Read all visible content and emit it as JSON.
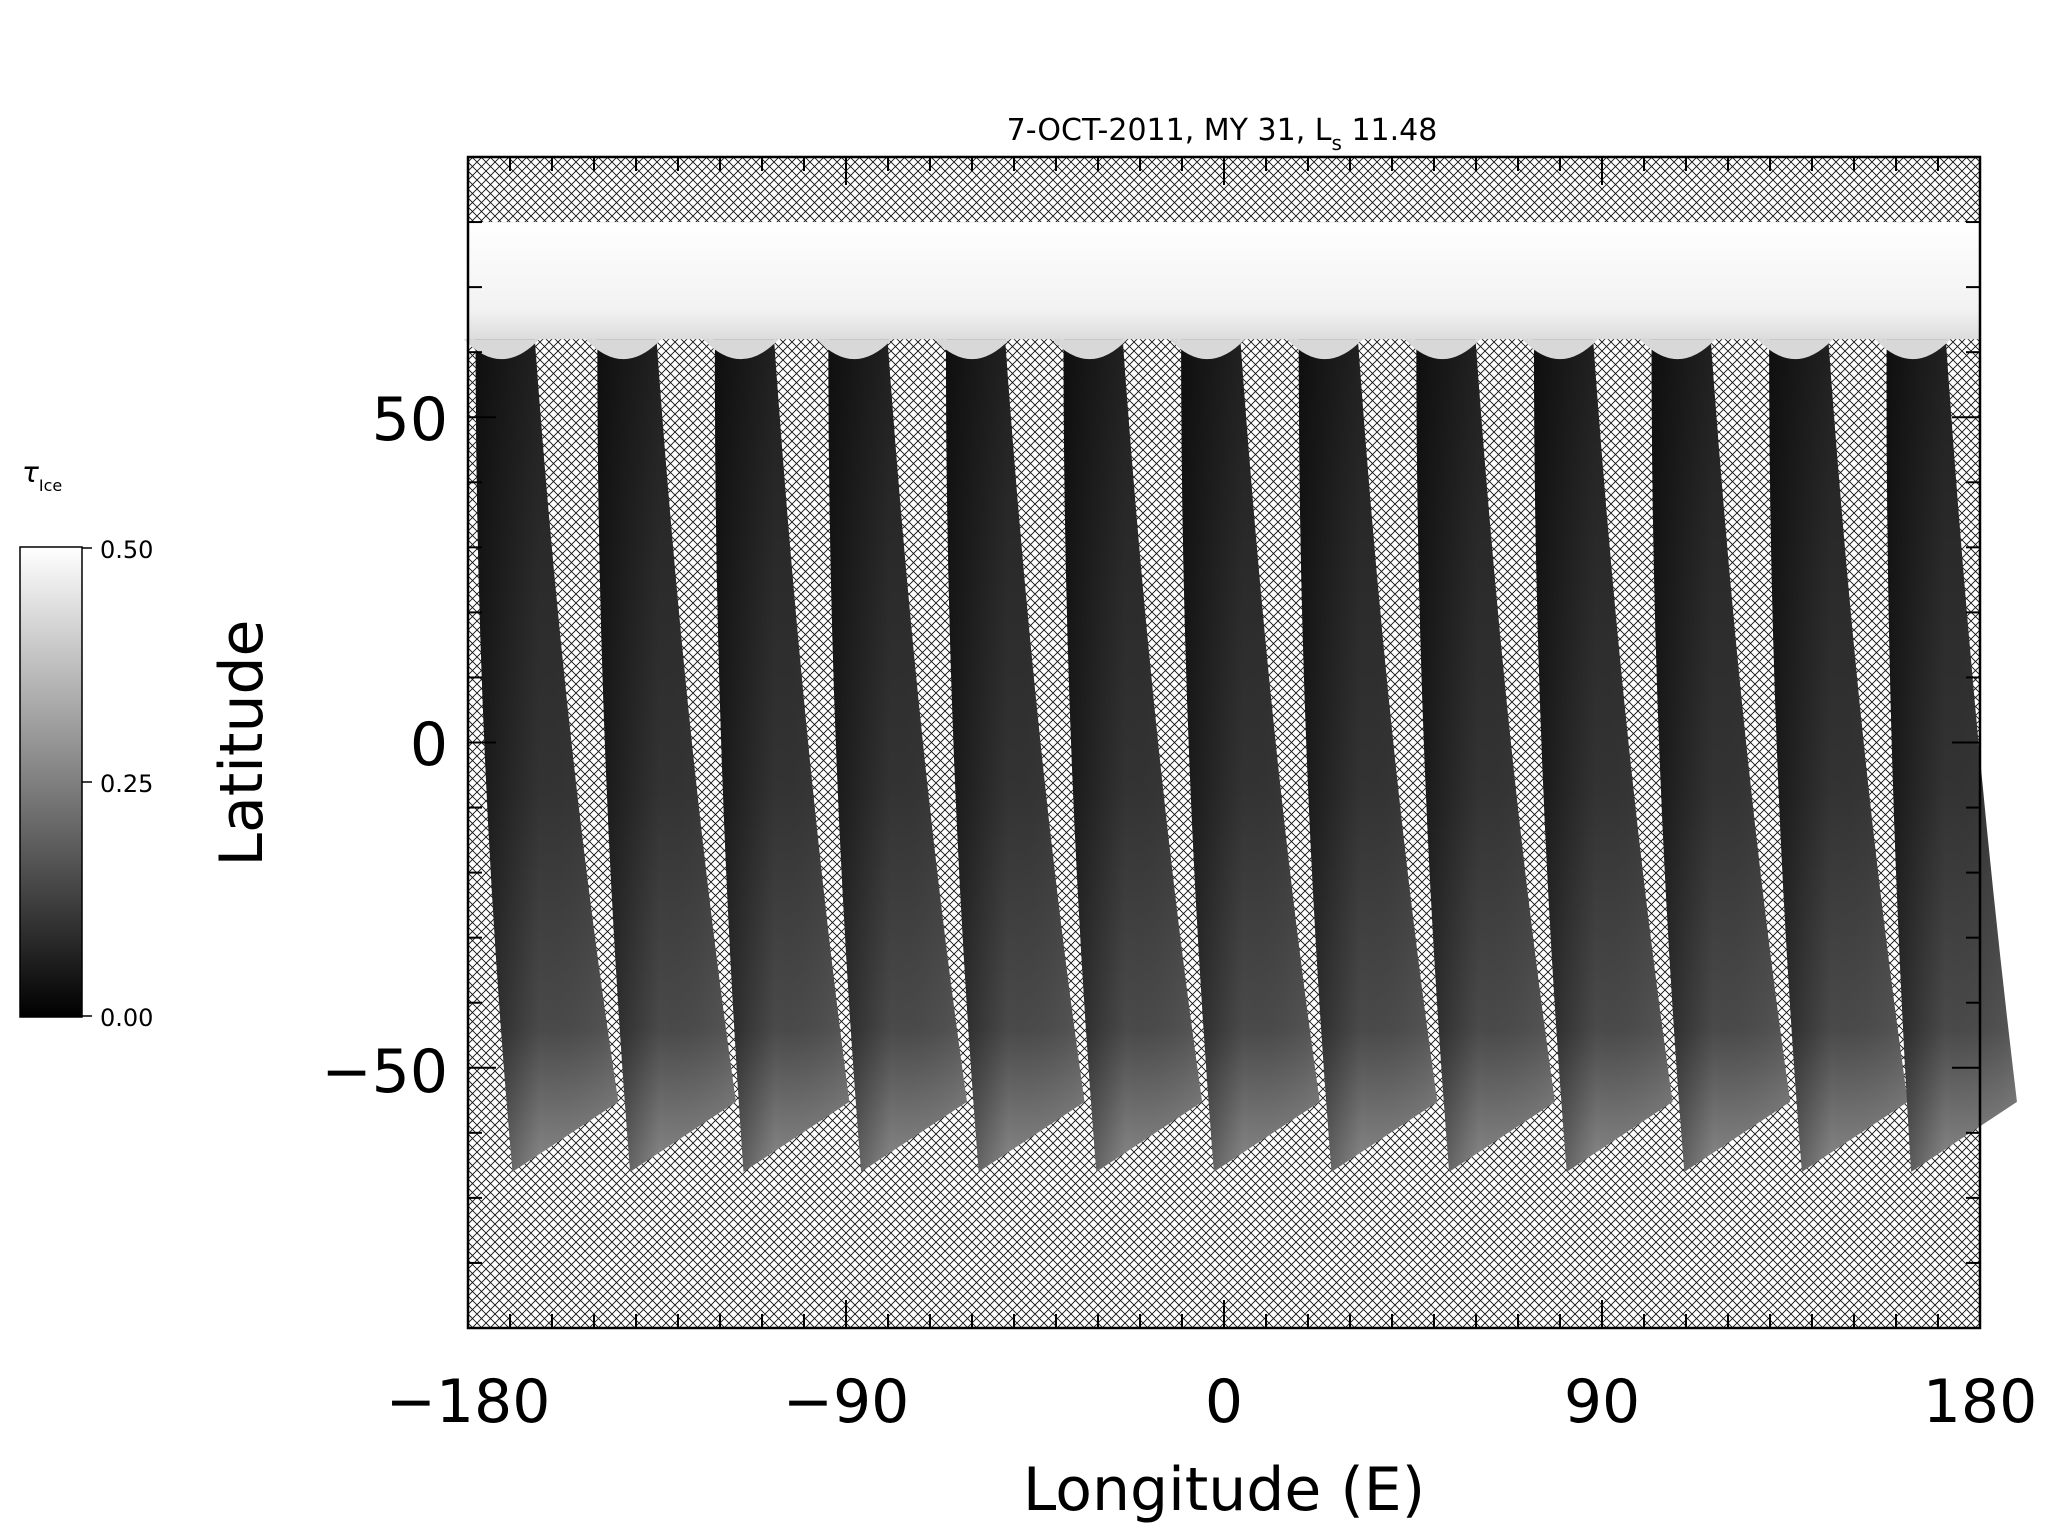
{
  "chart_data": {
    "type": "heatmap",
    "title": "7-OCT-2011, MY 31,  L",
    "title_sub": "s",
    "title_value": " 11.48",
    "xlabel": "Longitude (E)",
    "ylabel": "Latitude",
    "xlim": [
      -180,
      180
    ],
    "ylim": [
      -90,
      90
    ],
    "x_ticks": [
      -180,
      -90,
      0,
      90,
      180
    ],
    "x_tick_labels": [
      "−180",
      "−90",
      "0",
      "90",
      "180"
    ],
    "y_ticks": [
      -50,
      0,
      50
    ],
    "y_tick_labels": [
      "−50",
      "0",
      "50"
    ],
    "x_minor_step": 10,
    "y_minor_step": 10,
    "no_data_pattern": "crosshatch",
    "no_data_bands": {
      "north_above_lat": 80,
      "south_below_lat": -68
    },
    "polar_cap": {
      "lat_min": 62,
      "lat_max": 80,
      "value": 0.5
    },
    "swaths": [
      {
        "lon_north": -172,
        "lon_south": -155,
        "lat_south": -66
      },
      {
        "lon_north": -143,
        "lon_south": -127,
        "lat_south": -66
      },
      {
        "lon_north": -115,
        "lon_south": -100,
        "lat_south": -66
      },
      {
        "lon_north": -88,
        "lon_south": -72,
        "lat_south": -66
      },
      {
        "lon_north": -60,
        "lon_south": -44,
        "lat_south": -66
      },
      {
        "lon_north": -32,
        "lon_south": -16,
        "lat_south": -66
      },
      {
        "lon_north": -4,
        "lon_south": 12,
        "lat_south": -66
      },
      {
        "lon_north": 24,
        "lon_south": 40,
        "lat_south": -66
      },
      {
        "lon_north": 52,
        "lon_south": 68,
        "lat_south": -66
      },
      {
        "lon_north": 80,
        "lon_south": 96,
        "lat_south": -66
      },
      {
        "lon_north": 108,
        "lon_south": 124,
        "lat_south": -66
      },
      {
        "lon_north": 136,
        "lon_south": 152,
        "lat_south": -66
      },
      {
        "lon_north": 164,
        "lon_south": 178,
        "lat_south": -66
      }
    ],
    "colorbar": {
      "label_main": "τ",
      "label_sub": "Ice",
      "min": 0.0,
      "max": 0.5,
      "tick_labels": [
        "0.50",
        "0.25",
        "0.00"
      ],
      "tick_values": [
        0.5,
        0.25,
        0.0
      ],
      "colormap": "grayscale"
    }
  }
}
